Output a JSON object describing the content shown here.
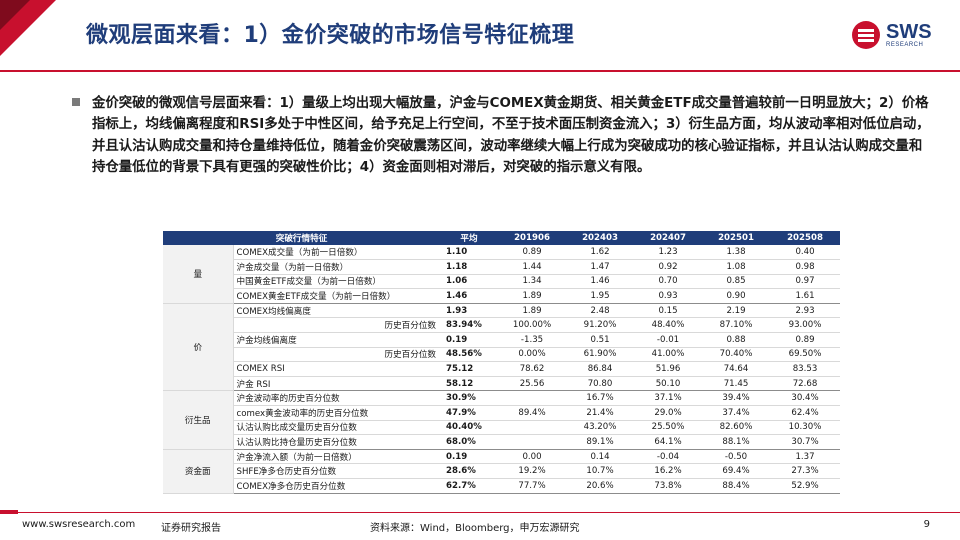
{
  "header": {
    "title": "微观层面来看：1）金价突破的市场信号特征梳理",
    "logo_text": "SWS",
    "logo_subtext": "RESEARCH"
  },
  "body": {
    "bullet": "金价突破的微观信号层面来看：1）量级上均出现大幅放量，沪金与COMEX黄金期货、相关黄金ETF成交量普遍较前一日明显放大；2）价格指标上，均线偏离程度和RSI多处于中性区间，给予充足上行空间，不至于技术面压制资金流入；3）衍生品方面，均从波动率相对低位启动，并且认沽认购成交量和持仓量维持低位，随着金价突破震荡区间，波动率继续大幅上行成为突破成功的核心验证指标，并且认沽认购成交量和持仓量低位的背景下具有更强的突破性价比；4）资金面则相对滞后，对突破的指示意义有限。"
  },
  "table": {
    "header": [
      "突破行情特征",
      "平均",
      "201906",
      "202403",
      "202407",
      "202501",
      "202508"
    ],
    "groups": [
      {
        "category": "量",
        "rows": [
          {
            "name": "COMEX成交量（为前一日倍数）",
            "avg": "1.10",
            "values": [
              "0.89",
              "1.62",
              "1.23",
              "1.38",
              "0.40"
            ]
          },
          {
            "name": "沪金成交量（为前一日倍数）",
            "avg": "1.18",
            "values": [
              "1.44",
              "1.47",
              "0.92",
              "1.08",
              "0.98"
            ]
          },
          {
            "name": "中国黄金ETF成交量（为前一日倍数）",
            "avg": "1.06",
            "values": [
              "1.34",
              "1.46",
              "0.70",
              "0.85",
              "0.97"
            ]
          },
          {
            "name": "COMEX黄金ETF成交量（为前一日倍数）",
            "avg": "1.46",
            "values": [
              "1.89",
              "1.95",
              "0.93",
              "0.90",
              "1.61"
            ]
          }
        ]
      },
      {
        "category": "价",
        "rows": [
          {
            "name": "COMEX均线偏离度",
            "avg": "1.93",
            "values": [
              "1.89",
              "2.48",
              "0.15",
              "2.19",
              "2.93"
            ]
          },
          {
            "name": "历史百分位数",
            "indent": true,
            "avg": "83.94%",
            "values": [
              "100.00%",
              "91.20%",
              "48.40%",
              "87.10%",
              "93.00%"
            ]
          },
          {
            "name": "沪金均线偏离度",
            "avg": "0.19",
            "values": [
              "-1.35",
              "0.51",
              "-0.01",
              "0.88",
              "0.89"
            ]
          },
          {
            "name": "历史百分位数",
            "indent": true,
            "avg": "48.56%",
            "values": [
              "0.00%",
              "61.90%",
              "41.00%",
              "70.40%",
              "69.50%"
            ]
          },
          {
            "name": "COMEX RSI",
            "avg": "75.12",
            "values": [
              "78.62",
              "86.84",
              "51.96",
              "74.64",
              "83.53"
            ]
          },
          {
            "name": "沪金 RSI",
            "avg": "58.12",
            "values": [
              "25.56",
              "70.80",
              "50.10",
              "71.45",
              "72.68"
            ]
          }
        ]
      },
      {
        "category": "衍生品",
        "rows": [
          {
            "name": "沪金波动率的历史百分位数",
            "avg": "30.9%",
            "values": [
              "",
              "16.7%",
              "37.1%",
              "39.4%",
              "30.4%"
            ]
          },
          {
            "name": "comex黄金波动率的历史百分位数",
            "avg": "47.9%",
            "values": [
              "89.4%",
              "21.4%",
              "29.0%",
              "37.4%",
              "62.4%"
            ]
          },
          {
            "name": "认沽认购比成交量历史百分位数",
            "avg": "40.40%",
            "values": [
              "",
              "43.20%",
              "25.50%",
              "82.60%",
              "10.30%"
            ]
          },
          {
            "name": "认沽认购比持仓量历史百分位数",
            "avg": "68.0%",
            "values": [
              "",
              "89.1%",
              "64.1%",
              "88.1%",
              "30.7%"
            ]
          }
        ]
      },
      {
        "category": "资金面",
        "rows": [
          {
            "name": "沪金净流入额（为前一日倍数）",
            "avg": "0.19",
            "values": [
              "0.00",
              "0.14",
              "-0.04",
              "-0.50",
              "1.37"
            ]
          },
          {
            "name": "SHFE净多仓历史百分位数",
            "avg": "28.6%",
            "values": [
              "19.2%",
              "10.7%",
              "16.2%",
              "69.4%",
              "27.3%"
            ]
          },
          {
            "name": "COMEX净多仓历史百分位数",
            "avg": "62.7%",
            "values": [
              "77.7%",
              "20.6%",
              "73.8%",
              "88.4%",
              "52.9%"
            ]
          }
        ]
      }
    ]
  },
  "footer": {
    "url": "www.swsresearch.com",
    "report_type": "证券研究报告",
    "source": "资料来源：Wind，Bloomberg，申万宏源研究",
    "page": "9"
  },
  "colors": {
    "brand_red": "#c8102e",
    "brand_navy": "#1f3d7a"
  }
}
